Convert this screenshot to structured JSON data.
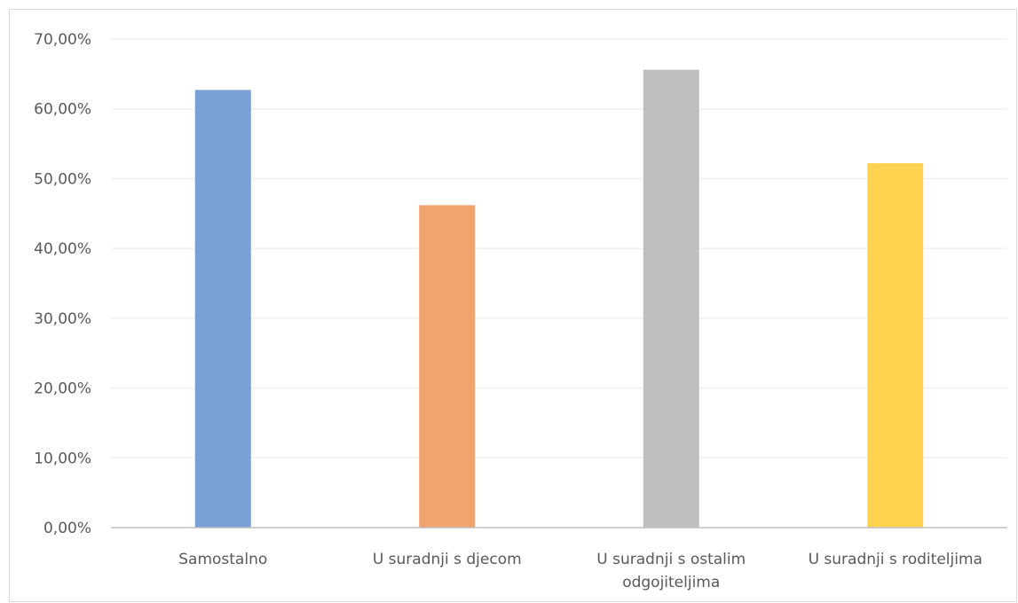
{
  "chart_data": {
    "type": "bar",
    "title": "",
    "xlabel": "",
    "ylabel": "",
    "categories": [
      "Samostalno",
      "U suradnji s djecom",
      "U suradnji s ostalim odgojiteljima",
      "U suradnji s roditeljima"
    ],
    "category_label_lines": [
      [
        "Samostalno"
      ],
      [
        "U suradnji s djecom"
      ],
      [
        "U suradnji s ostalim",
        "odgojiteljima"
      ],
      [
        "U suradnji s roditeljima"
      ]
    ],
    "values": [
      0.627,
      0.462,
      0.656,
      0.522
    ],
    "colors": [
      "#7a9fd6",
      "#f0a46e",
      "#bfbfbf",
      "#ffd34f"
    ],
    "ylim": [
      0,
      0.7
    ],
    "yticks": [
      0,
      0.1,
      0.2,
      0.3,
      0.4,
      0.5,
      0.6,
      0.7
    ],
    "ytick_labels": [
      "0,00%",
      "10,00%",
      "20,00%",
      "30,00%",
      "40,00%",
      "50,00%",
      "60,00%",
      "70,00%"
    ],
    "grid": true,
    "legend": "none",
    "gridline_color": "#eeeeee",
    "axis_line_color": "#bfbfbf",
    "text_color": "#595959"
  }
}
